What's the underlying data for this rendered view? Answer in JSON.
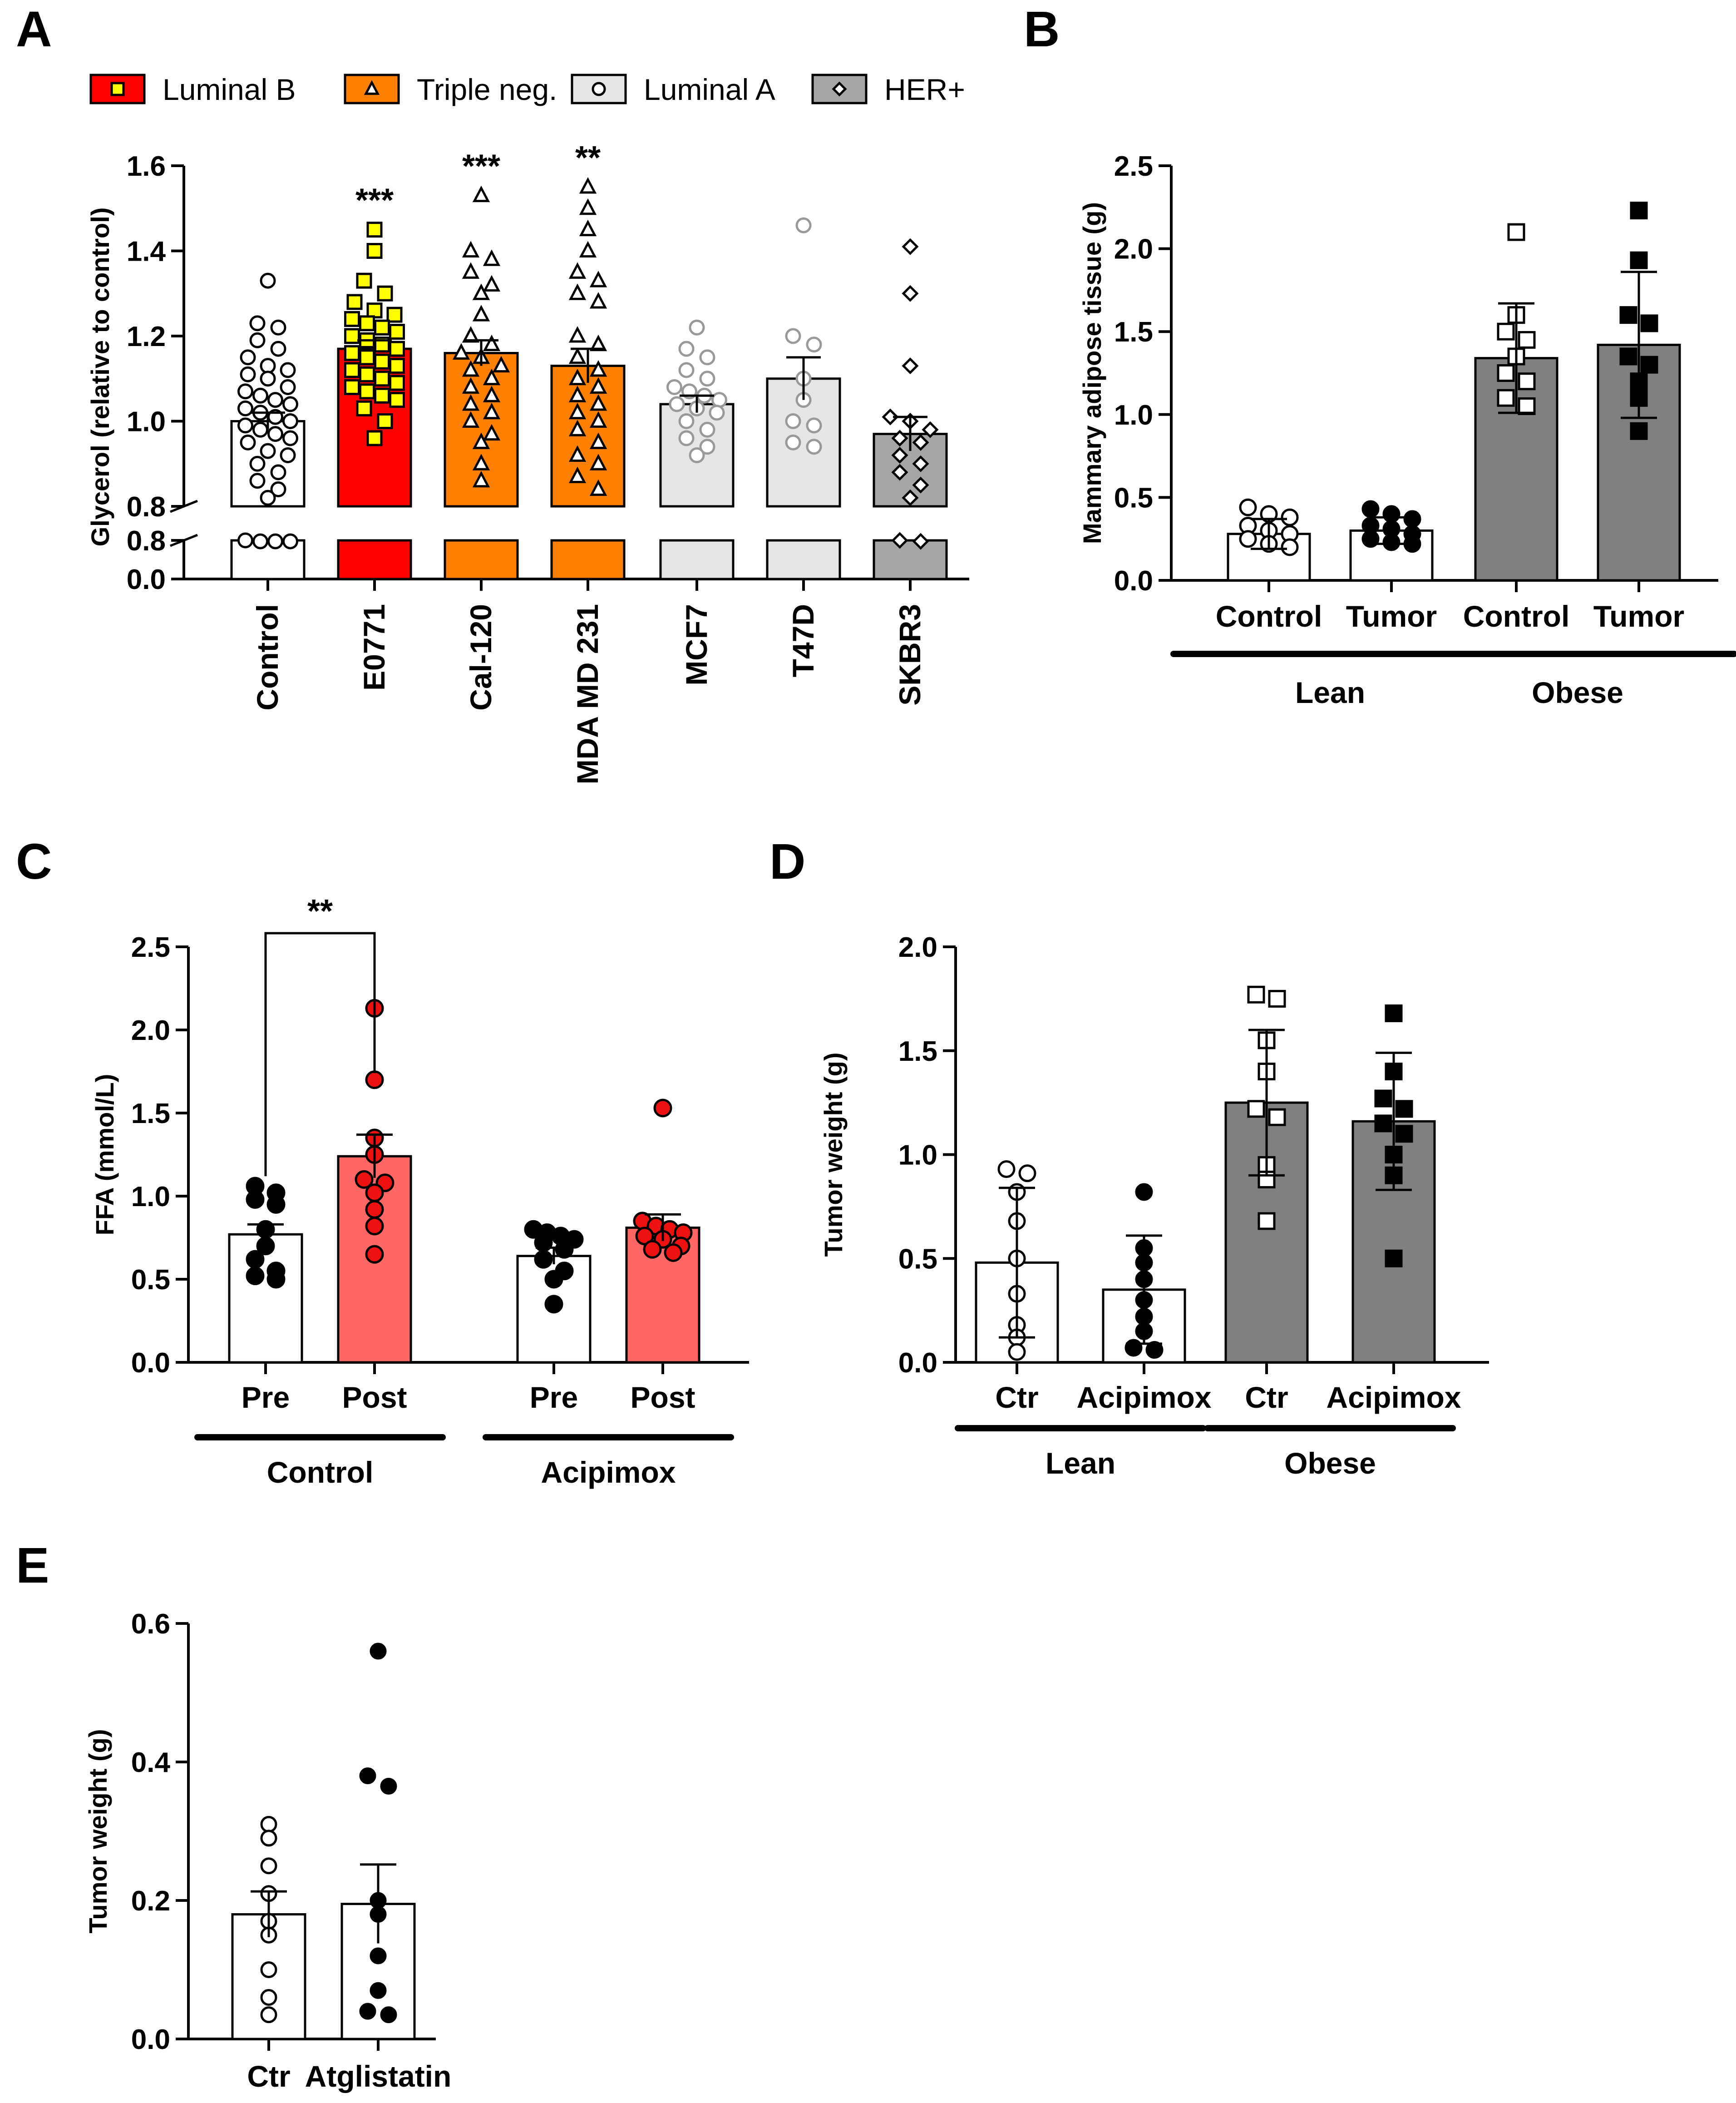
{
  "chart_data": [
    {
      "panel": "A",
      "type": "bar",
      "ylabel": "Glycerol (relative to control)",
      "ylim_upper": [
        0.8,
        1.6
      ],
      "ylim_lower": [
        0.0,
        0.8
      ],
      "yticks_upper": [
        "0.8",
        "1.0",
        "1.2",
        "1.4",
        "1.6"
      ],
      "yticks_lower": [
        "0.0",
        "0.8"
      ],
      "axis_break": true,
      "legend": [
        {
          "name": "Luminal B",
          "color": "#ff0000",
          "marker": "square",
          "marker_fill": "#ffff00"
        },
        {
          "name": "Triple neg.",
          "color": "#ff8000",
          "marker": "triangle",
          "marker_fill": "none"
        },
        {
          "name": "Luminal A",
          "color": "#e6e6e6",
          "marker": "circle",
          "marker_fill": "none"
        },
        {
          "name": "HER+",
          "color": "#a6a6a6",
          "marker": "diamond",
          "marker_fill": "none"
        }
      ],
      "categories": [
        "Control",
        "E0771",
        "Cal-120",
        "MDA MD 231",
        "MCF7",
        "T47D",
        "SKBR3"
      ],
      "values": [
        1.0,
        1.17,
        1.16,
        1.13,
        1.04,
        1.1,
        0.97
      ],
      "sem": [
        0.02,
        0.02,
        0.03,
        0.04,
        0.02,
        0.05,
        0.04
      ],
      "bar_colors": [
        "#ffffff",
        "#ff0000",
        "#ff8000",
        "#ff8000",
        "#e6e6e6",
        "#e6e6e6",
        "#a6a6a6"
      ],
      "significance": [
        "",
        "***",
        "***",
        "**",
        "",
        "",
        ""
      ],
      "points": [
        [
          1.33,
          1.23,
          1.22,
          1.19,
          1.17,
          1.15,
          1.13,
          1.12,
          1.11,
          1.1,
          1.08,
          1.07,
          1.06,
          1.05,
          1.04,
          1.03,
          1.02,
          1.01,
          1.0,
          0.99,
          0.98,
          0.97,
          0.96,
          0.95,
          0.93,
          0.92,
          0.9,
          0.88,
          0.86,
          0.84,
          0.82,
          0.8,
          0.78,
          0.78,
          0.78
        ],
        [
          1.45,
          1.4,
          1.33,
          1.3,
          1.28,
          1.26,
          1.25,
          1.24,
          1.23,
          1.22,
          1.21,
          1.2,
          1.19,
          1.18,
          1.17,
          1.16,
          1.15,
          1.14,
          1.13,
          1.12,
          1.11,
          1.1,
          1.09,
          1.08,
          1.07,
          1.06,
          1.05,
          1.03,
          1.0,
          0.96
        ],
        [
          1.53,
          1.4,
          1.38,
          1.35,
          1.32,
          1.3,
          1.25,
          1.2,
          1.18,
          1.16,
          1.15,
          1.13,
          1.12,
          1.1,
          1.08,
          1.06,
          1.04,
          1.02,
          1.0,
          0.97,
          0.95,
          0.9,
          0.86
        ],
        [
          1.55,
          1.5,
          1.45,
          1.4,
          1.35,
          1.33,
          1.3,
          1.28,
          1.2,
          1.18,
          1.15,
          1.12,
          1.1,
          1.08,
          1.06,
          1.04,
          1.02,
          1.0,
          0.98,
          0.95,
          0.92,
          0.9,
          0.87,
          0.84
        ],
        [
          1.22,
          1.17,
          1.15,
          1.12,
          1.1,
          1.08,
          1.07,
          1.06,
          1.05,
          1.04,
          1.03,
          1.02,
          1.0,
          0.98,
          0.96,
          0.94,
          0.92
        ],
        [
          1.46,
          1.2,
          1.18,
          1.1,
          1.05,
          1.0,
          0.99,
          0.95,
          0.94
        ],
        [
          1.41,
          1.3,
          1.13,
          1.01,
          1.0,
          0.98,
          0.96,
          0.95,
          0.92,
          0.9,
          0.88,
          0.85,
          0.82,
          0.8,
          0.78
        ]
      ],
      "marker_shapes": [
        "circle",
        "square",
        "triangle",
        "triangle",
        "circle",
        "circle",
        "diamond"
      ],
      "marker_fills": [
        "none",
        "#ffff00",
        "none",
        "none",
        "none",
        "none",
        "none"
      ],
      "marker_strokes": [
        "#000000",
        "#000000",
        "#000000",
        "#000000",
        "#999999",
        "#999999",
        "#000000"
      ]
    },
    {
      "panel": "B",
      "type": "bar",
      "ylabel": "Mammary adipose tissue (g)",
      "ylim": [
        0,
        2.5
      ],
      "yticks": [
        "0.0",
        "0.5",
        "1.0",
        "1.5",
        "2.0",
        "2.5"
      ],
      "categories": [
        "Control",
        "Tumor",
        "Control",
        "Tumor"
      ],
      "groups": [
        {
          "label": "Lean",
          "span": [
            0,
            1
          ]
        },
        {
          "label": "Obese",
          "span": [
            2,
            3
          ]
        }
      ],
      "values": [
        0.28,
        0.3,
        1.34,
        1.42
      ],
      "sd": [
        0.09,
        0.08,
        0.33,
        0.44
      ],
      "bar_colors": [
        "#ffffff",
        "#ffffff",
        "#808080",
        "#808080"
      ],
      "marker_shapes": [
        "circle",
        "circle",
        "square",
        "square"
      ],
      "marker_fills": [
        "none",
        "#000000",
        "none",
        "#000000"
      ],
      "points": [
        [
          0.44,
          0.4,
          0.38,
          0.33,
          0.3,
          0.28,
          0.25,
          0.22,
          0.2
        ],
        [
          0.43,
          0.4,
          0.37,
          0.33,
          0.31,
          0.28,
          0.25,
          0.23,
          0.22
        ],
        [
          2.1,
          1.6,
          1.5,
          1.45,
          1.35,
          1.25,
          1.2,
          1.1,
          1.05
        ],
        [
          2.23,
          1.93,
          1.6,
          1.55,
          1.35,
          1.3,
          1.2,
          1.1,
          0.9
        ]
      ]
    },
    {
      "panel": "C",
      "type": "bar",
      "ylabel": "FFA (mmol/L)",
      "ylim": [
        0,
        2.5
      ],
      "yticks": [
        "0.0",
        "0.5",
        "1.0",
        "1.5",
        "2.0",
        "2.5"
      ],
      "categories": [
        "Pre",
        "Post",
        "Pre",
        "Post"
      ],
      "groups": [
        {
          "label": "Control",
          "span": [
            0,
            1
          ]
        },
        {
          "label": "Acipimox",
          "span": [
            2,
            3
          ]
        }
      ],
      "values": [
        0.77,
        1.24,
        0.64,
        0.81
      ],
      "sem": [
        0.06,
        0.13,
        0.05,
        0.08
      ],
      "bar_colors": [
        "#ffffff",
        "#ff6666",
        "#ffffff",
        "#ff6666"
      ],
      "marker_shapes": [
        "circle",
        "circle",
        "circle",
        "circle"
      ],
      "marker_fills": [
        "#000000",
        "#ee1111",
        "#000000",
        "#ee1111"
      ],
      "points": [
        [
          1.06,
          1.02,
          0.98,
          0.95,
          0.8,
          0.7,
          0.62,
          0.55,
          0.52,
          0.5
        ],
        [
          2.13,
          1.7,
          1.35,
          1.25,
          1.1,
          1.08,
          1.02,
          0.92,
          0.82,
          0.65
        ],
        [
          0.8,
          0.78,
          0.76,
          0.74,
          0.72,
          0.68,
          0.62,
          0.55,
          0.5,
          0.35
        ],
        [
          1.53,
          0.85,
          0.82,
          0.8,
          0.78,
          0.76,
          0.74,
          0.7,
          0.68,
          0.66
        ]
      ],
      "comparison": {
        "from": 0,
        "to": 1,
        "label": "**"
      }
    },
    {
      "panel": "D",
      "type": "bar",
      "ylabel": "Tumor weight (g)",
      "ylim": [
        0,
        2.0
      ],
      "yticks": [
        "0.0",
        "0.5",
        "1.0",
        "1.5",
        "2.0"
      ],
      "categories": [
        "Ctr",
        "Acipimox",
        "Ctr",
        "Acipimox"
      ],
      "groups": [
        {
          "label": "Lean",
          "span": [
            0,
            1
          ]
        },
        {
          "label": "Obese",
          "span": [
            2,
            3
          ]
        }
      ],
      "values": [
        0.48,
        0.35,
        1.25,
        1.16
      ],
      "sd": [
        0.36,
        0.26,
        0.35,
        0.33
      ],
      "bar_colors": [
        "#ffffff",
        "#ffffff",
        "#808080",
        "#808080"
      ],
      "marker_shapes": [
        "circle",
        "circle",
        "square",
        "square"
      ],
      "marker_fills": [
        "none",
        "#000000",
        "none",
        "#000000"
      ],
      "points": [
        [
          0.93,
          0.91,
          0.82,
          0.68,
          0.5,
          0.33,
          0.18,
          0.12,
          0.05
        ],
        [
          0.82,
          0.55,
          0.48,
          0.4,
          0.3,
          0.22,
          0.15,
          0.07,
          0.06
        ],
        [
          1.77,
          1.75,
          1.55,
          1.4,
          1.22,
          1.18,
          0.95,
          0.88,
          0.68
        ],
        [
          1.68,
          1.4,
          1.27,
          1.22,
          1.15,
          1.1,
          1.0,
          0.9,
          0.5
        ]
      ]
    },
    {
      "panel": "E",
      "type": "bar",
      "ylabel": "Tumor weight (g)",
      "ylim": [
        0,
        0.6
      ],
      "yticks": [
        "0.0",
        "0.2",
        "0.4",
        "0.6"
      ],
      "categories": [
        "Ctr",
        "Atglistatin"
      ],
      "values": [
        0.18,
        0.195
      ],
      "sem": [
        0.033,
        0.057
      ],
      "bar_colors": [
        "#ffffff",
        "#ffffff"
      ],
      "marker_shapes": [
        "circle",
        "circle"
      ],
      "marker_fills": [
        "none",
        "#000000"
      ],
      "points": [
        [
          0.31,
          0.29,
          0.25,
          0.21,
          0.17,
          0.15,
          0.1,
          0.06,
          0.035
        ],
        [
          0.56,
          0.38,
          0.365,
          0.2,
          0.18,
          0.12,
          0.07,
          0.04,
          0.035
        ]
      ]
    }
  ]
}
